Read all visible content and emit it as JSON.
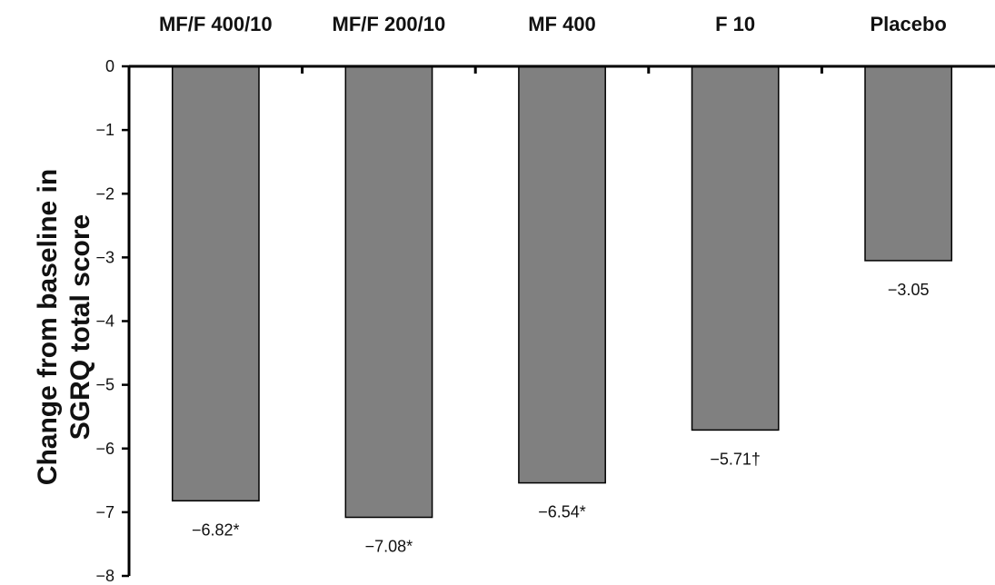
{
  "chart_data": {
    "type": "bar",
    "categories": [
      "MF/F 400/10",
      "MF/F 200/10",
      "MF 400",
      "F 10",
      "Placebo"
    ],
    "values": [
      -6.82,
      -7.08,
      -6.54,
      -5.71,
      -3.05
    ],
    "data_labels": [
      "−6.82*",
      "−7.08*",
      "−6.54*",
      "−5.71†",
      "−3.05"
    ],
    "ylabel_lines": [
      "Change from baseline in",
      "SGRQ total score"
    ],
    "xlabel": "",
    "ylim": [
      -8,
      0
    ],
    "yticks": [
      0,
      -1,
      -2,
      -3,
      -4,
      -5,
      -6,
      -7,
      -8
    ],
    "ytick_labels": [
      "0",
      "−1",
      "−2",
      "−3",
      "−4",
      "−5",
      "−6",
      "−7",
      "−8"
    ],
    "category_axis_position": "top",
    "grid": false,
    "bar_color": "#808080"
  }
}
